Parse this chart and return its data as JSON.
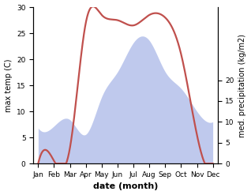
{
  "months": [
    "Jan",
    "Feb",
    "Mar",
    "Apr",
    "May",
    "Jun",
    "Jul",
    "Aug",
    "Sep",
    "Oct",
    "Nov",
    "Dec"
  ],
  "month_positions": [
    0,
    1,
    2,
    3,
    4,
    5,
    6,
    7,
    8,
    9,
    10,
    11
  ],
  "temp_data": [
    0.0,
    0.5,
    3.0,
    27.0,
    28.5,
    27.5,
    26.5,
    28.5,
    28.0,
    21.0,
    5.5,
    0.0
  ],
  "precip_data": [
    8.5,
    9.0,
    10.5,
    7.0,
    16.0,
    22.0,
    29.0,
    29.5,
    22.0,
    18.0,
    12.5,
    10.0
  ],
  "temp_color": "#c0504d",
  "precip_fill_color": "#aab8e8",
  "precip_fill_alpha": 0.75,
  "temp_ylim": [
    0,
    30
  ],
  "precip_ylim": [
    0,
    37.5
  ],
  "precip_right_yticks": [
    0,
    5,
    10,
    15,
    20
  ],
  "precip_right_ylabels": [
    "0",
    "5",
    "10",
    "15",
    "20"
  ],
  "temp_yticks": [
    0,
    5,
    10,
    15,
    20,
    25,
    30
  ],
  "temp_ylabels": [
    "0",
    "5",
    "10",
    "15",
    "20",
    "25",
    "30"
  ],
  "xlabel": "date (month)",
  "ylabel_left": "max temp (C)",
  "ylabel_right": "med. precipitation (kg/m2)",
  "xlabel_fontsize": 8,
  "ylabel_fontsize": 7,
  "tick_fontsize": 6.5,
  "line_width": 1.6
}
